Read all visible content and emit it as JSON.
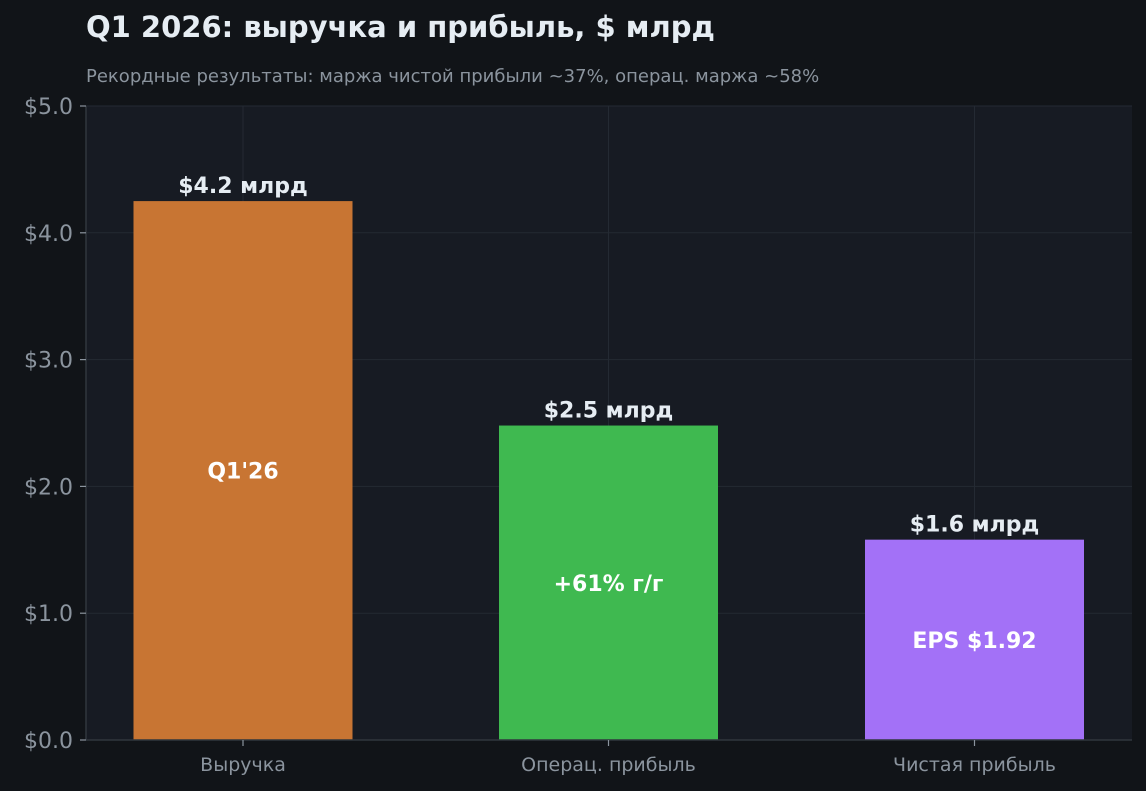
{
  "chart_data": {
    "type": "bar",
    "title": "Q1 2026: выручка и прибыль, $ млрд",
    "subtitle": "Рекордные результаты: маржа чистой прибыли ~37%, операц. маржа ~58%",
    "categories": [
      "Выручка",
      "Операц. прибыль",
      "Чистая прибыль"
    ],
    "values": [
      4.25,
      2.48,
      1.58
    ],
    "value_labels": [
      "$4.2 млрд",
      "$2.5 млрд",
      "$1.6 млрд"
    ],
    "inner_labels": [
      "Q1'26",
      "+61% г/г",
      "EPS $1.92"
    ],
    "colors": [
      "#c87533",
      "#3fb950",
      "#a371f7"
    ],
    "ylim": [
      0,
      5
    ],
    "yticks": [
      0,
      1,
      2,
      3,
      4,
      5
    ],
    "ytick_labels": [
      "$0.0",
      "$1.0",
      "$2.0",
      "$3.0",
      "$4.0",
      "$5.0"
    ],
    "xlabel": "",
    "ylabel": "",
    "grid": true
  }
}
